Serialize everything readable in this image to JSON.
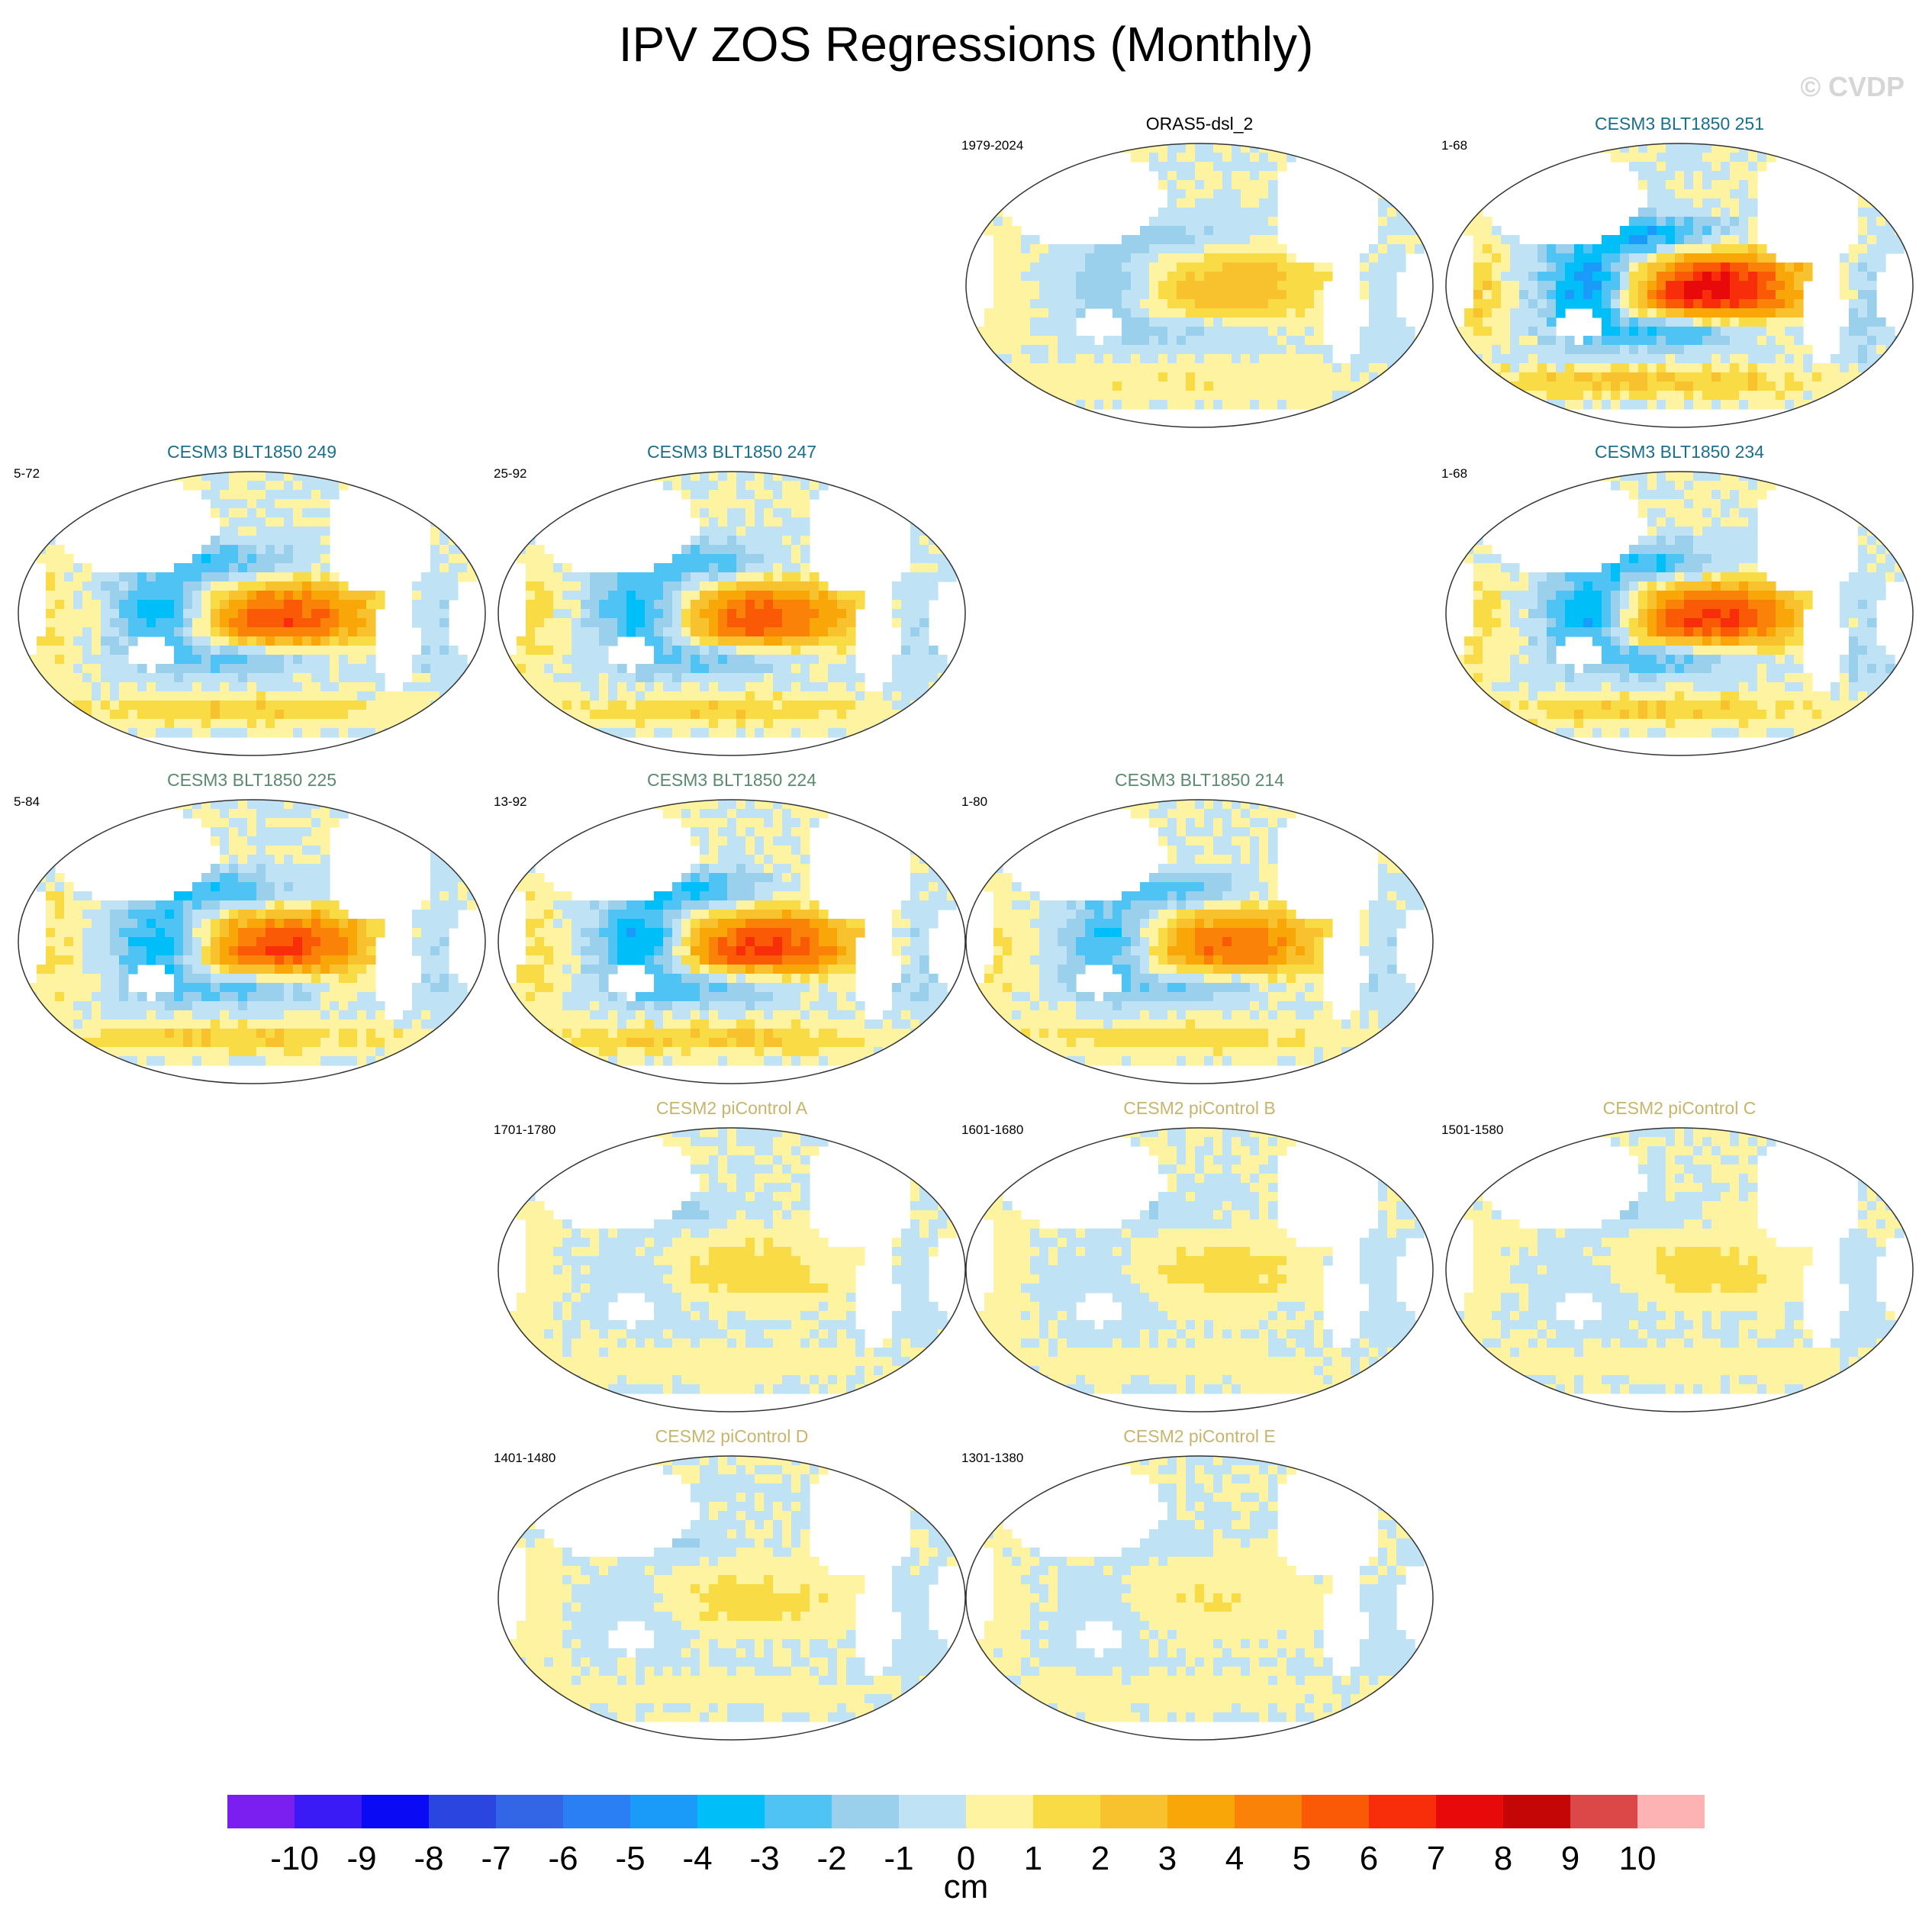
{
  "chart_data": {
    "type": "map",
    "title": "IPV ZOS Regressions (Monthly)",
    "watermark": "© CVDP",
    "units": "cm",
    "panels": [
      {
        "name": "ORAS5-dsl_2",
        "years": "1979-2024",
        "color": "#000000",
        "strength": 0.45,
        "pattern": "obs"
      },
      {
        "name": "CESM3 BLT1850 251",
        "years": "1-68",
        "color": "#1a6f8c",
        "strength": 1.2,
        "pattern": "model"
      },
      {
        "name": "CESM3 BLT1850 249",
        "years": "5-72",
        "color": "#1a6f8c",
        "strength": 0.9,
        "pattern": "model"
      },
      {
        "name": "CESM3 BLT1850 247",
        "years": "25-92",
        "color": "#1a6f8c",
        "strength": 0.9,
        "pattern": "model"
      },
      {
        "name": "CESM3 BLT1850 234",
        "years": "1-68",
        "color": "#1a6f8c",
        "strength": 1.0,
        "pattern": "model"
      },
      {
        "name": "CESM3 BLT1850 225",
        "years": "5-84",
        "color": "#5b8a6e",
        "strength": 0.95,
        "pattern": "model"
      },
      {
        "name": "CESM3 BLT1850 224",
        "years": "13-92",
        "color": "#5b8a6e",
        "strength": 1.0,
        "pattern": "model"
      },
      {
        "name": "CESM3 BLT1850 214",
        "years": "1-80",
        "color": "#5b8a6e",
        "strength": 0.8,
        "pattern": "model"
      },
      {
        "name": "CESM2 piControl A",
        "years": "1701-1780",
        "color": "#c8b46a",
        "strength": 0.55,
        "pattern": "pi"
      },
      {
        "name": "CESM2 piControl B",
        "years": "1601-1680",
        "color": "#c8b46a",
        "strength": 0.5,
        "pattern": "pi"
      },
      {
        "name": "CESM2 piControl C",
        "years": "1501-1580",
        "color": "#c8b46a",
        "strength": 0.5,
        "pattern": "pi"
      },
      {
        "name": "CESM2 piControl D",
        "years": "1401-1480",
        "color": "#c8b46a",
        "strength": 0.5,
        "pattern": "pi"
      },
      {
        "name": "CESM2 piControl E",
        "years": "1301-1380",
        "color": "#c8b46a",
        "strength": 0.35,
        "pattern": "pi"
      }
    ],
    "colorbar": {
      "ticks": [
        "-10",
        "-9",
        "-8",
        "-7",
        "-6",
        "-5",
        "-4",
        "-3",
        "-2",
        "-1",
        "0",
        "1",
        "2",
        "3",
        "4",
        "5",
        "6",
        "7",
        "8",
        "9",
        "10"
      ],
      "colors": [
        "#7b1ff0",
        "#3a1bf5",
        "#0a0af5",
        "#2a45e0",
        "#3366e6",
        "#2a7ff5",
        "#1a9bfa",
        "#00bff8",
        "#4fc3f4",
        "#9ad0ec",
        "#bfe2f5",
        "#fdf3a0",
        "#f9dc45",
        "#f8c12e",
        "#f8a608",
        "#fa8208",
        "#fa5a06",
        "#f82e0a",
        "#e80a0a",
        "#c40606",
        "#dc4848",
        "#fdb3b3"
      ]
    }
  }
}
